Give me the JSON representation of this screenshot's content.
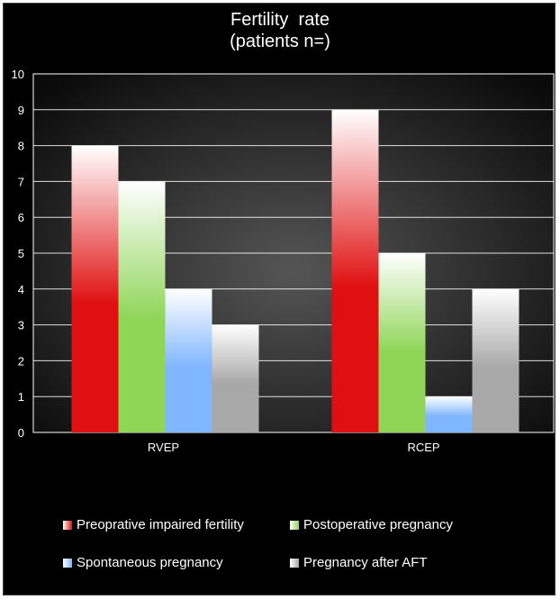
{
  "chart_data": {
    "type": "bar",
    "title": "Fertility  rate",
    "subtitle": "(patients n=)",
    "categories": [
      "RVEP",
      "RCEP"
    ],
    "series": [
      {
        "name": "Preoprative impaired fertility",
        "values": [
          8,
          9
        ],
        "color": "#e01010"
      },
      {
        "name": "Postoperative pregnancy",
        "values": [
          7,
          5
        ],
        "color": "#8fd657"
      },
      {
        "name": "Spontaneous pregnancy",
        "values": [
          4,
          1
        ],
        "color": "#7fb6ff"
      },
      {
        "name": "Pregnancy after AFT",
        "values": [
          3,
          4
        ],
        "color": "#a8a8a8"
      }
    ],
    "ylim": [
      0,
      10
    ],
    "yticks": [
      "0",
      "1",
      "2",
      "3",
      "4",
      "5",
      "6",
      "7",
      "8",
      "9",
      "10"
    ],
    "grid": true,
    "legend_position": "bottom"
  }
}
